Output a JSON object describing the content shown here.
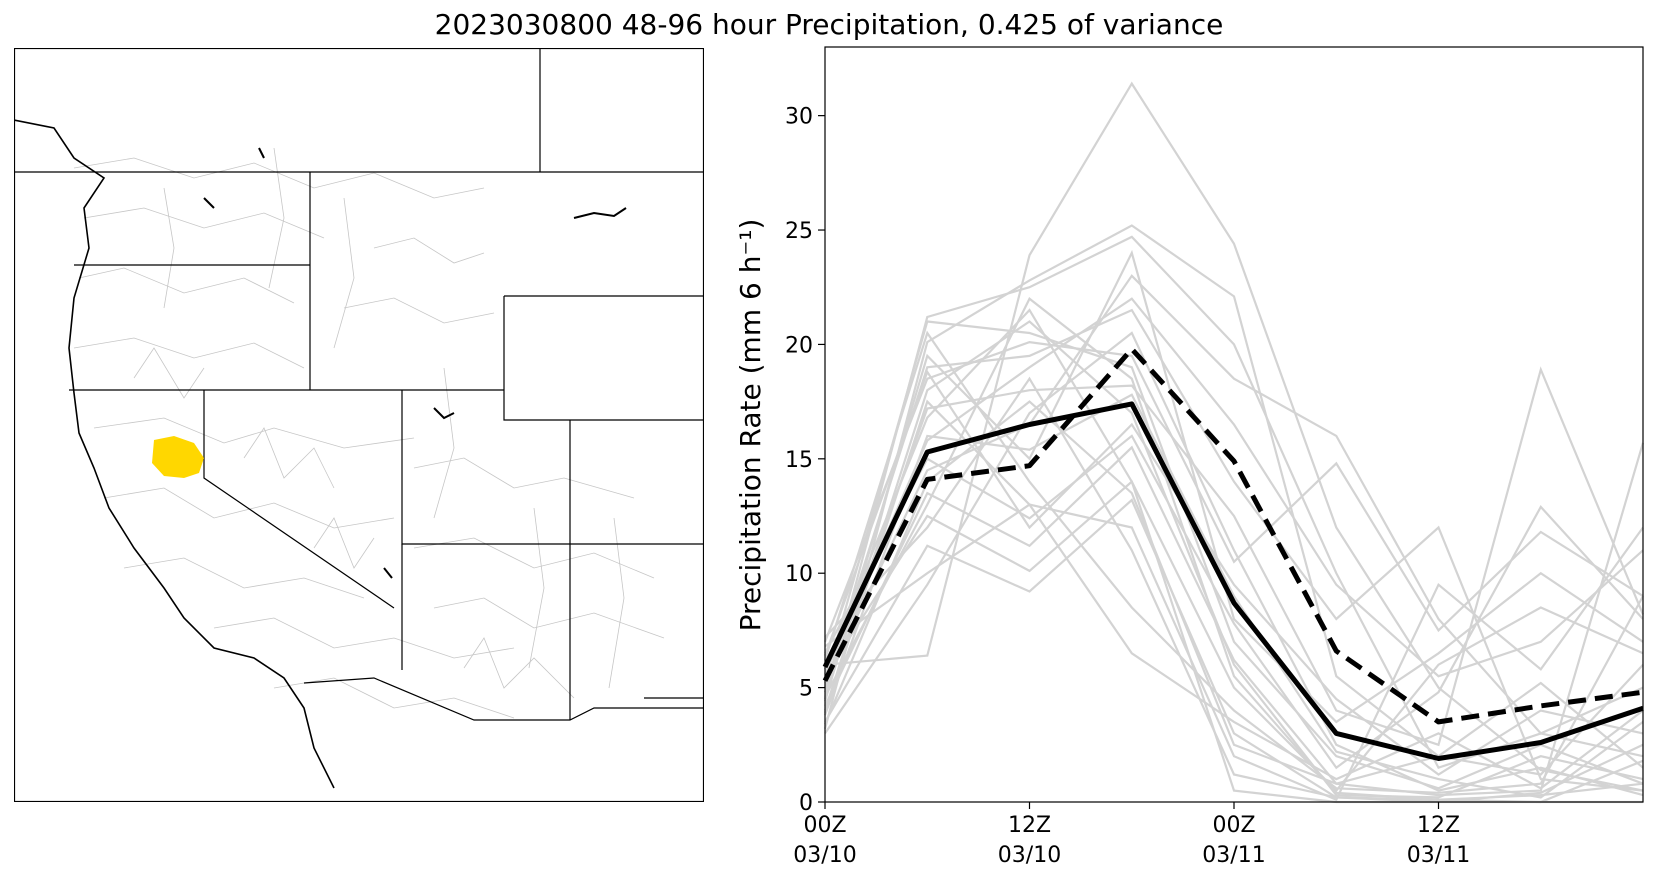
{
  "title": "2023030800 48-96 hour Precipitation, 0.425 of variance",
  "colors": {
    "ensemble": "#d3d3d3",
    "mean": "#000000",
    "highlight_basin": "#ffd700",
    "state_lines": "#000000",
    "basin_lines": "#c0c0c0"
  },
  "chart_data": {
    "type": "line",
    "title": "2023030800 48-96 hour Precipitation, 0.425 of variance",
    "xlabel": "",
    "ylabel": "Precipitation Rate (mm 6 h⁻¹)",
    "ylim": [
      0,
      33
    ],
    "xlim": [
      0,
      8
    ],
    "x": [
      0,
      1,
      2,
      3,
      4,
      5,
      6,
      7,
      8
    ],
    "x_units": "6-hourly steps from 00Z 03/10",
    "xticks": [
      {
        "x": 0,
        "line1": "00Z",
        "line2": "03/10"
      },
      {
        "x": 2,
        "line1": "12Z",
        "line2": "03/10"
      },
      {
        "x": 4,
        "line1": "00Z",
        "line2": "03/11"
      },
      {
        "x": 6,
        "line1": "12Z",
        "line2": "03/11"
      }
    ],
    "yticks": [
      0,
      5,
      10,
      15,
      20,
      25,
      30
    ],
    "grid": false,
    "series": [
      {
        "style": "solid",
        "values": [
          5.9,
          15.3,
          16.5,
          17.4,
          8.7,
          3.0,
          1.9,
          2.6,
          4.1
        ]
      },
      {
        "style": "dashed",
        "values": [
          5.3,
          14.1,
          14.7,
          19.8,
          14.9,
          6.6,
          3.5,
          4.2,
          4.8
        ]
      }
    ],
    "ensemble_members": [
      [
        6.0,
        6.4,
        23.9,
        31.4,
        24.4,
        12.0,
        5.0,
        1.4,
        0.5
      ],
      [
        4.5,
        21.2,
        22.5,
        24.7,
        20.0,
        10.0,
        1.5,
        3.0,
        2.0
      ],
      [
        3.2,
        20.1,
        22.8,
        25.2,
        22.1,
        5.5,
        2.0,
        5.2,
        1.5
      ],
      [
        5.0,
        19.0,
        19.5,
        21.5,
        14.0,
        8.0,
        12.0,
        1.0,
        0.5
      ],
      [
        7.0,
        18.5,
        20.1,
        19.5,
        10.5,
        14.8,
        7.5,
        11.8,
        9.0
      ],
      [
        4.8,
        17.2,
        18.0,
        18.2,
        12.5,
        4.0,
        2.5,
        18.9,
        8.2
      ],
      [
        3.8,
        16.0,
        15.4,
        17.8,
        9.0,
        2.2,
        1.0,
        0.2,
        3.5
      ],
      [
        6.5,
        15.0,
        12.4,
        16.0,
        7.8,
        1.5,
        4.8,
        12.9,
        8.0
      ],
      [
        4.2,
        13.5,
        11.2,
        15.5,
        6.2,
        0.8,
        0.3,
        0.5,
        15.7
      ],
      [
        5.5,
        12.5,
        10.1,
        14.0,
        5.0,
        0.5,
        6.0,
        8.5,
        6.5
      ],
      [
        3.5,
        11.2,
        9.2,
        13.2,
        3.0,
        0.2,
        0.1,
        0.3,
        0.8
      ],
      [
        6.8,
        10.0,
        13.0,
        12.0,
        2.0,
        0.1,
        9.5,
        5.8,
        12.0
      ],
      [
        4.0,
        18.0,
        21.0,
        17.0,
        6.0,
        0.3,
        0.2,
        2.0,
        1.0
      ],
      [
        5.2,
        14.5,
        16.5,
        23.0,
        18.5,
        16.0,
        8.0,
        3.0,
        5.0
      ],
      [
        6.2,
        20.5,
        14.0,
        8.5,
        4.0,
        0.6,
        0.4,
        0.8,
        9.0
      ],
      [
        3.0,
        9.5,
        17.0,
        20.5,
        11.0,
        2.5,
        0.5,
        1.5,
        0.3
      ],
      [
        5.8,
        16.8,
        21.5,
        14.0,
        0.5,
        0.0,
        0.0,
        0.0,
        0.0
      ],
      [
        4.4,
        19.5,
        15.0,
        24.0,
        8.0,
        3.5,
        6.5,
        10.0,
        7.0
      ],
      [
        7.2,
        12.0,
        18.5,
        11.0,
        1.2,
        0.2,
        0.0,
        0.4,
        2.5
      ],
      [
        3.9,
        17.5,
        13.0,
        6.5,
        3.5,
        1.0,
        3.0,
        0.6,
        4.0
      ],
      [
        5.6,
        15.8,
        19.0,
        22.0,
        16.5,
        9.5,
        5.5,
        7.0,
        11.0
      ],
      [
        4.6,
        13.0,
        22.0,
        18.5,
        5.5,
        0.4,
        0.1,
        0.0,
        1.8
      ],
      [
        6.4,
        18.8,
        12.0,
        16.5,
        9.5,
        4.5,
        1.2,
        4.0,
        3.0
      ],
      [
        3.4,
        14.0,
        17.5,
        13.5,
        2.5,
        0.8,
        2.0,
        1.2,
        6.0
      ],
      [
        5.3,
        21.0,
        20.5,
        19.0,
        7.0,
        2.0,
        0.6,
        2.5,
        0.8
      ]
    ]
  }
}
